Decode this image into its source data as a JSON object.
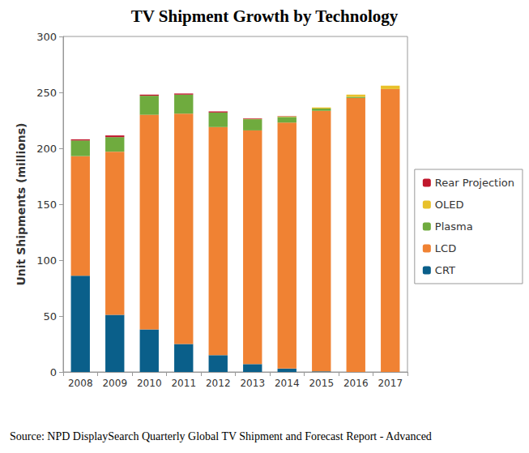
{
  "chart_data": {
    "type": "bar",
    "title": "TV Shipment Growth by Technology",
    "ylabel": "Unit Shipments (millions)",
    "source": "Source: NPD DisplaySearch Quarterly Global TV Shipment and Forecast Report - Advanced",
    "categories": [
      "2008",
      "2009",
      "2010",
      "2011",
      "2012",
      "2013",
      "2014",
      "2015",
      "2016",
      "2017"
    ],
    "series": [
      {
        "name": "CRT",
        "color": "#0a5f8a",
        "values": [
          86,
          51,
          38,
          25,
          15,
          7,
          3,
          0.5,
          0,
          0
        ]
      },
      {
        "name": "LCD",
        "color": "#f08233",
        "values": [
          107,
          146,
          192,
          206,
          204,
          209,
          220,
          233,
          245,
          253
        ]
      },
      {
        "name": "Plasma",
        "color": "#6fab3e",
        "values": [
          14,
          13,
          17,
          17,
          13,
          10,
          5,
          2,
          1,
          0
        ]
      },
      {
        "name": "OLED",
        "color": "#e8c12a",
        "values": [
          0,
          0,
          0,
          0,
          0,
          0.3,
          0.5,
          1,
          2,
          3
        ]
      },
      {
        "name": "Rear Projection",
        "color": "#c0172c",
        "values": [
          1,
          1.5,
          1,
          1,
          1,
          0.5,
          0.3,
          0,
          0,
          0
        ]
      }
    ],
    "ylim": [
      0,
      300
    ],
    "yticks": [
      0,
      50,
      100,
      150,
      200,
      250,
      300
    ],
    "stacked": true,
    "grid": false,
    "legend": "right"
  }
}
